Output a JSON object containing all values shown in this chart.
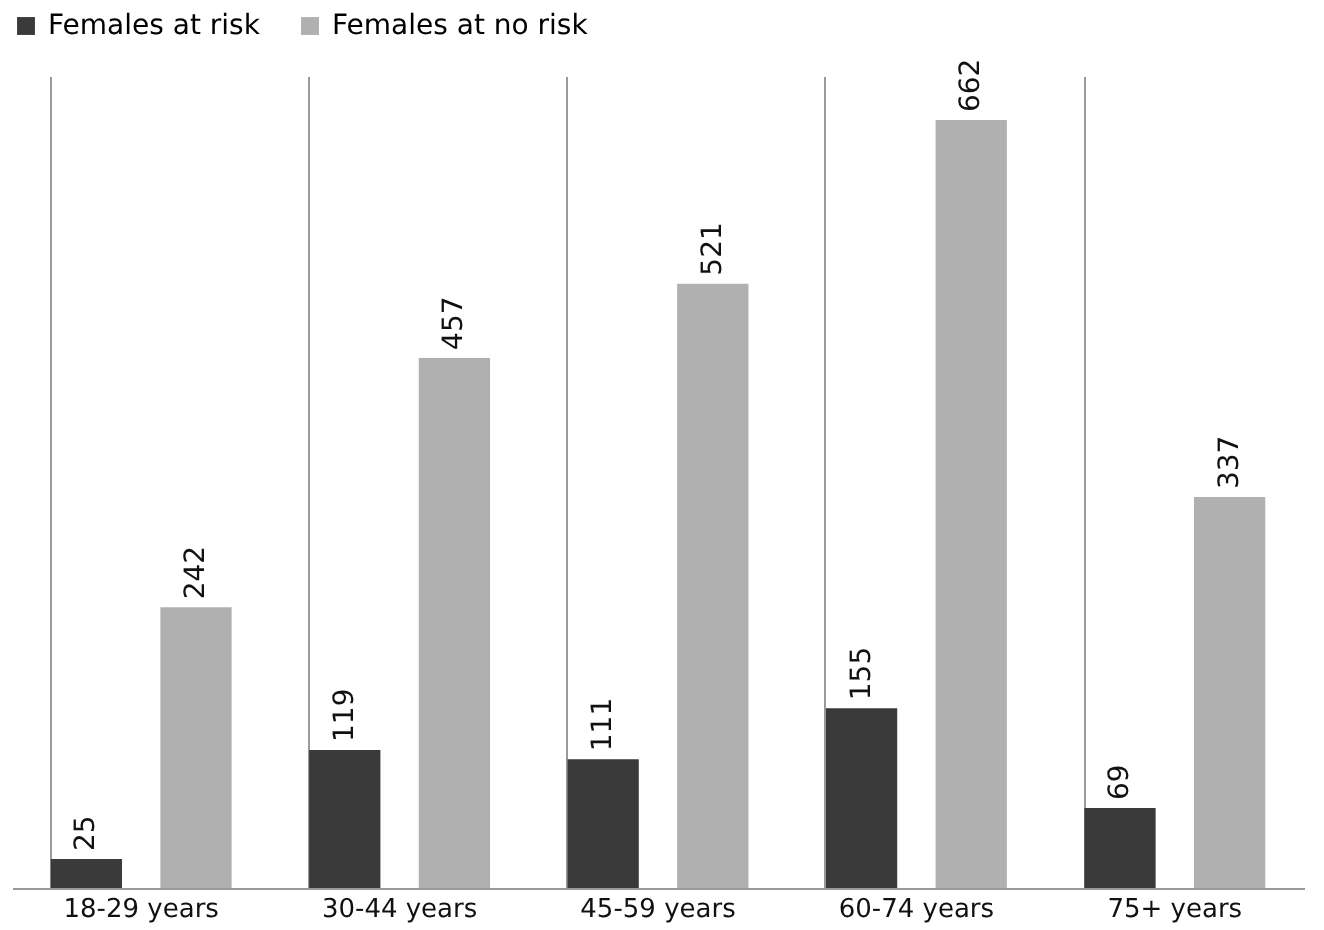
{
  "chart_data": {
    "type": "bar",
    "categories": [
      "18-29 years",
      "30-44 years",
      "45-59 years",
      "60-74 years",
      "75+ years"
    ],
    "series": [
      {
        "name": "Females at risk",
        "color": "#3a3a3a",
        "values": [
          25,
          119,
          111,
          155,
          69
        ]
      },
      {
        "name": "Females at no risk",
        "color": "#b0b0b0",
        "values": [
          242,
          457,
          521,
          662,
          337
        ]
      }
    ],
    "ylim": [
      0,
      700
    ],
    "tick_labels": "x",
    "data_labels": true,
    "grid": "x",
    "legend": "top"
  }
}
